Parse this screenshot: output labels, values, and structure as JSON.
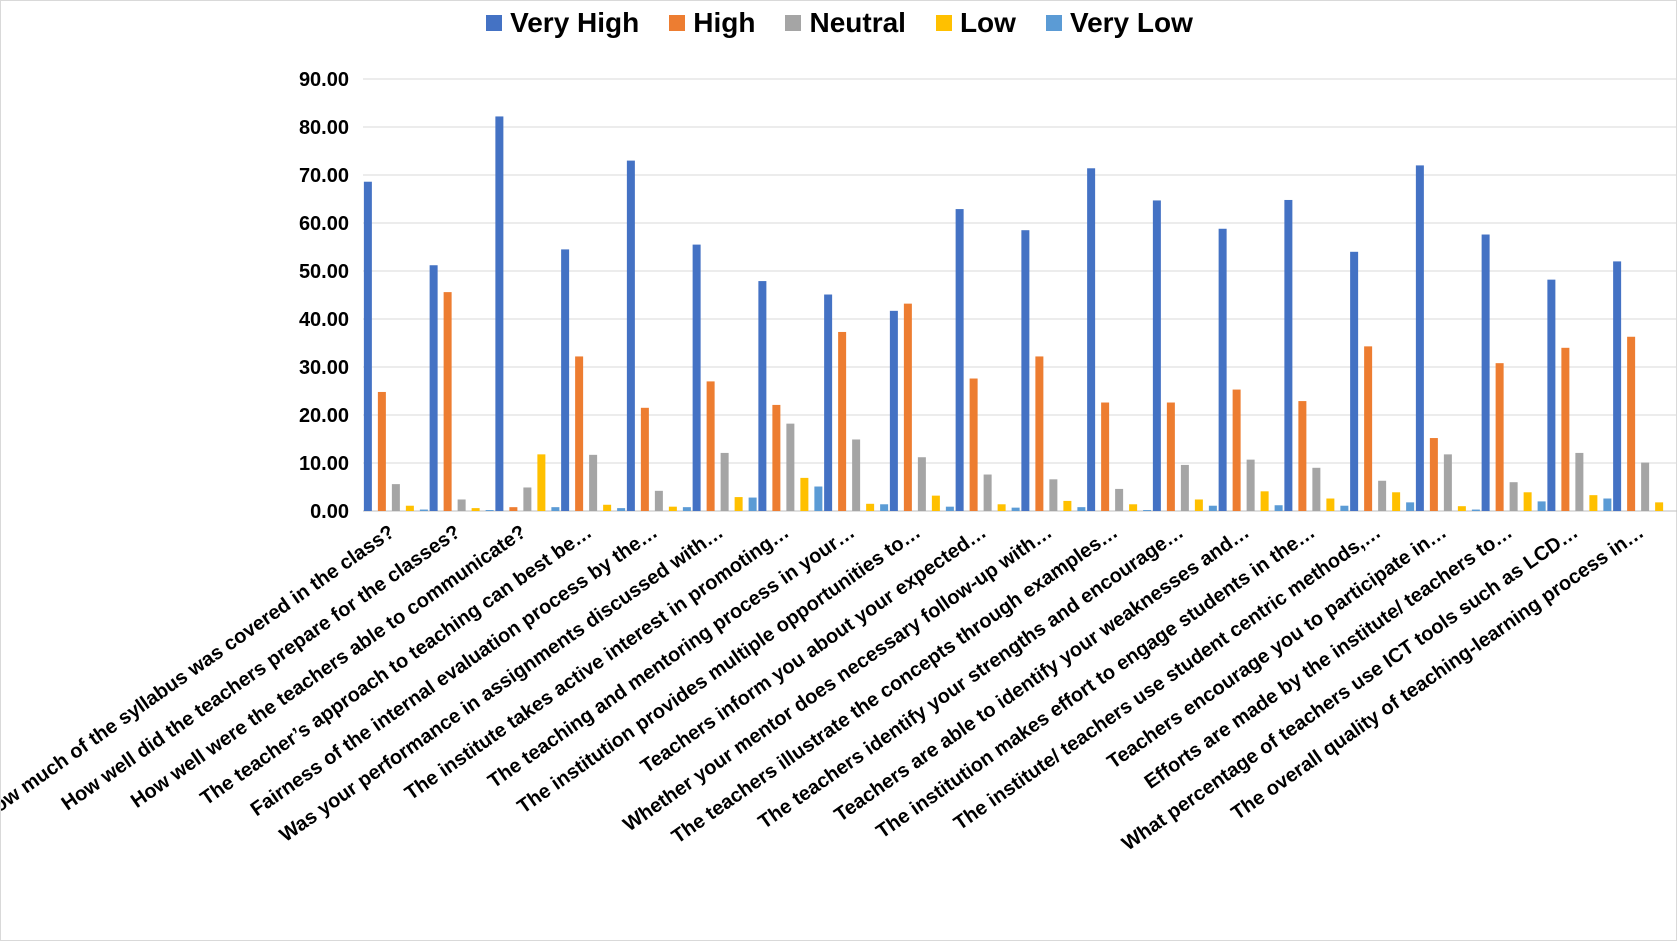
{
  "chart_data": {
    "type": "bar",
    "ylim": [
      0,
      90
    ],
    "yticks": [
      "0.00",
      "10.00",
      "20.00",
      "30.00",
      "40.00",
      "50.00",
      "60.00",
      "70.00",
      "80.00",
      "90.00"
    ],
    "grid": true,
    "legend_position": "top",
    "categories": [
      "How much of the syllabus was covered in the class?",
      "How well did the teachers prepare for the classes?",
      "How well were the teachers able to communicate?",
      "The teacher’s approach to teaching can best be…",
      "Fairness of the internal evaluation process by the…",
      "Was your performance in assignments discussed with…",
      "The institute takes active interest in promoting…",
      "The teaching and mentoring process in your…",
      "The institution provides multiple opportunities to…",
      "Teachers inform you about your expected…",
      "Whether your mentor does necessary follow-up with…",
      "The teachers illustrate the concepts through examples…",
      "The teachers identify your strengths and encourage…",
      "Teachers are able to identify your weaknesses and…",
      "The institution makes effort to engage students in the…",
      "The institute/ teachers use student centric methods,…",
      "Teachers encourage you to participate in…",
      "Efforts are made by the institute/ teachers to…",
      "What percentage of teachers use ICT tools such as LCD…",
      "The overall quality of teaching-learning process in…"
    ],
    "series": [
      {
        "name": "Very High",
        "color": "#4472C4",
        "values": [
          68.6,
          51.2,
          82.2,
          54.5,
          73.0,
          55.5,
          47.9,
          45.1,
          41.7,
          62.9,
          58.5,
          71.4,
          64.7,
          58.8,
          64.8,
          54.0,
          72.0,
          57.6,
          48.2,
          52.0
        ]
      },
      {
        "name": "High",
        "color": "#ED7D31",
        "values": [
          24.8,
          45.6,
          0.8,
          32.2,
          21.5,
          27.0,
          22.1,
          37.3,
          43.2,
          27.6,
          32.2,
          22.6,
          22.6,
          25.3,
          22.9,
          34.3,
          15.2,
          30.8,
          34.0,
          36.3
        ]
      },
      {
        "name": "Neutral",
        "color": "#A5A5A5",
        "values": [
          5.6,
          2.4,
          4.9,
          11.7,
          4.2,
          12.1,
          18.2,
          14.9,
          11.2,
          7.6,
          6.6,
          4.6,
          9.6,
          10.7,
          9.0,
          6.3,
          11.8,
          6.0,
          12.1,
          10.1
        ]
      },
      {
        "name": "Low",
        "color": "#FFC000",
        "values": [
          1.1,
          0.6,
          11.8,
          1.3,
          0.9,
          2.9,
          6.9,
          1.5,
          3.2,
          1.4,
          2.1,
          1.4,
          2.4,
          4.1,
          2.6,
          3.9,
          1.0,
          3.9,
          3.3,
          1.8
        ]
      },
      {
        "name": "Very Low",
        "color": "#5B9BD5",
        "values": [
          0.3,
          0.2,
          0.8,
          0.6,
          0.8,
          2.8,
          5.1,
          1.4,
          0.9,
          0.7,
          0.8,
          0.2,
          1.1,
          1.2,
          1.1,
          1.8,
          0.3,
          2.0,
          2.6,
          0.0
        ]
      }
    ]
  }
}
